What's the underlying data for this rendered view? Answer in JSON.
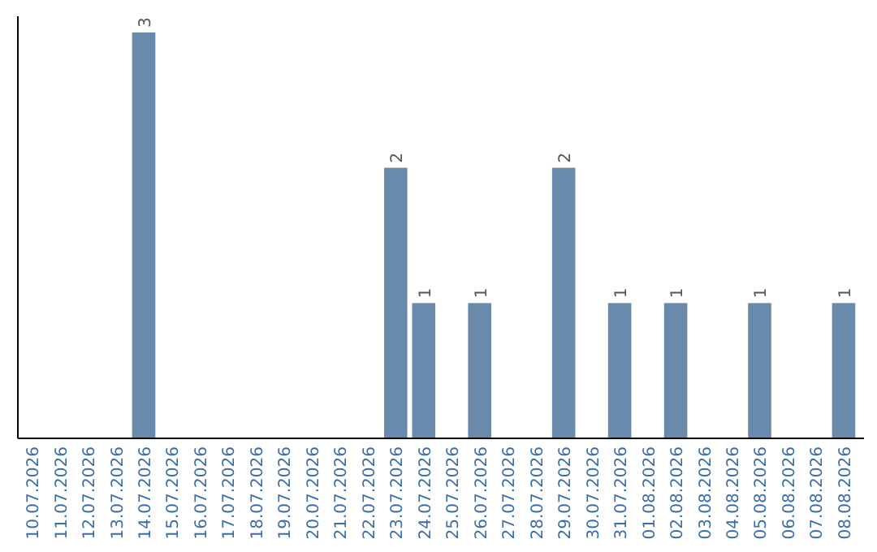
{
  "chart_data": {
    "type": "bar",
    "categories": [
      "10.07.2026",
      "11.07.2026",
      "12.07.2026",
      "13.07.2026",
      "14.07.2026",
      "15.07.2026",
      "16.07.2026",
      "17.07.2026",
      "18.07.2026",
      "19.07.2026",
      "20.07.2026",
      "21.07.2026",
      "22.07.2026",
      "23.07.2026",
      "24.07.2026",
      "25.07.2026",
      "26.07.2026",
      "27.07.2026",
      "28.07.2026",
      "29.07.2026",
      "30.07.2026",
      "31.07.2026",
      "01.08.2026",
      "02.08.2026",
      "03.08.2026",
      "04.08.2026",
      "05.08.2026",
      "06.08.2026",
      "07.08.2026",
      "08.08.2026"
    ],
    "values": [
      0,
      0,
      0,
      0,
      3,
      0,
      0,
      0,
      0,
      0,
      0,
      0,
      0,
      2,
      1,
      0,
      1,
      0,
      0,
      2,
      0,
      1,
      0,
      1,
      0,
      0,
      1,
      0,
      0,
      1
    ],
    "value_labels": [
      null,
      null,
      null,
      null,
      "3",
      null,
      null,
      null,
      null,
      null,
      null,
      null,
      null,
      "2",
      "1",
      null,
      "1",
      null,
      null,
      "2",
      null,
      "1",
      null,
      "1",
      null,
      null,
      "1",
      null,
      null,
      "1"
    ],
    "color": "#6a8aab",
    "tick_labels": "x"
  }
}
